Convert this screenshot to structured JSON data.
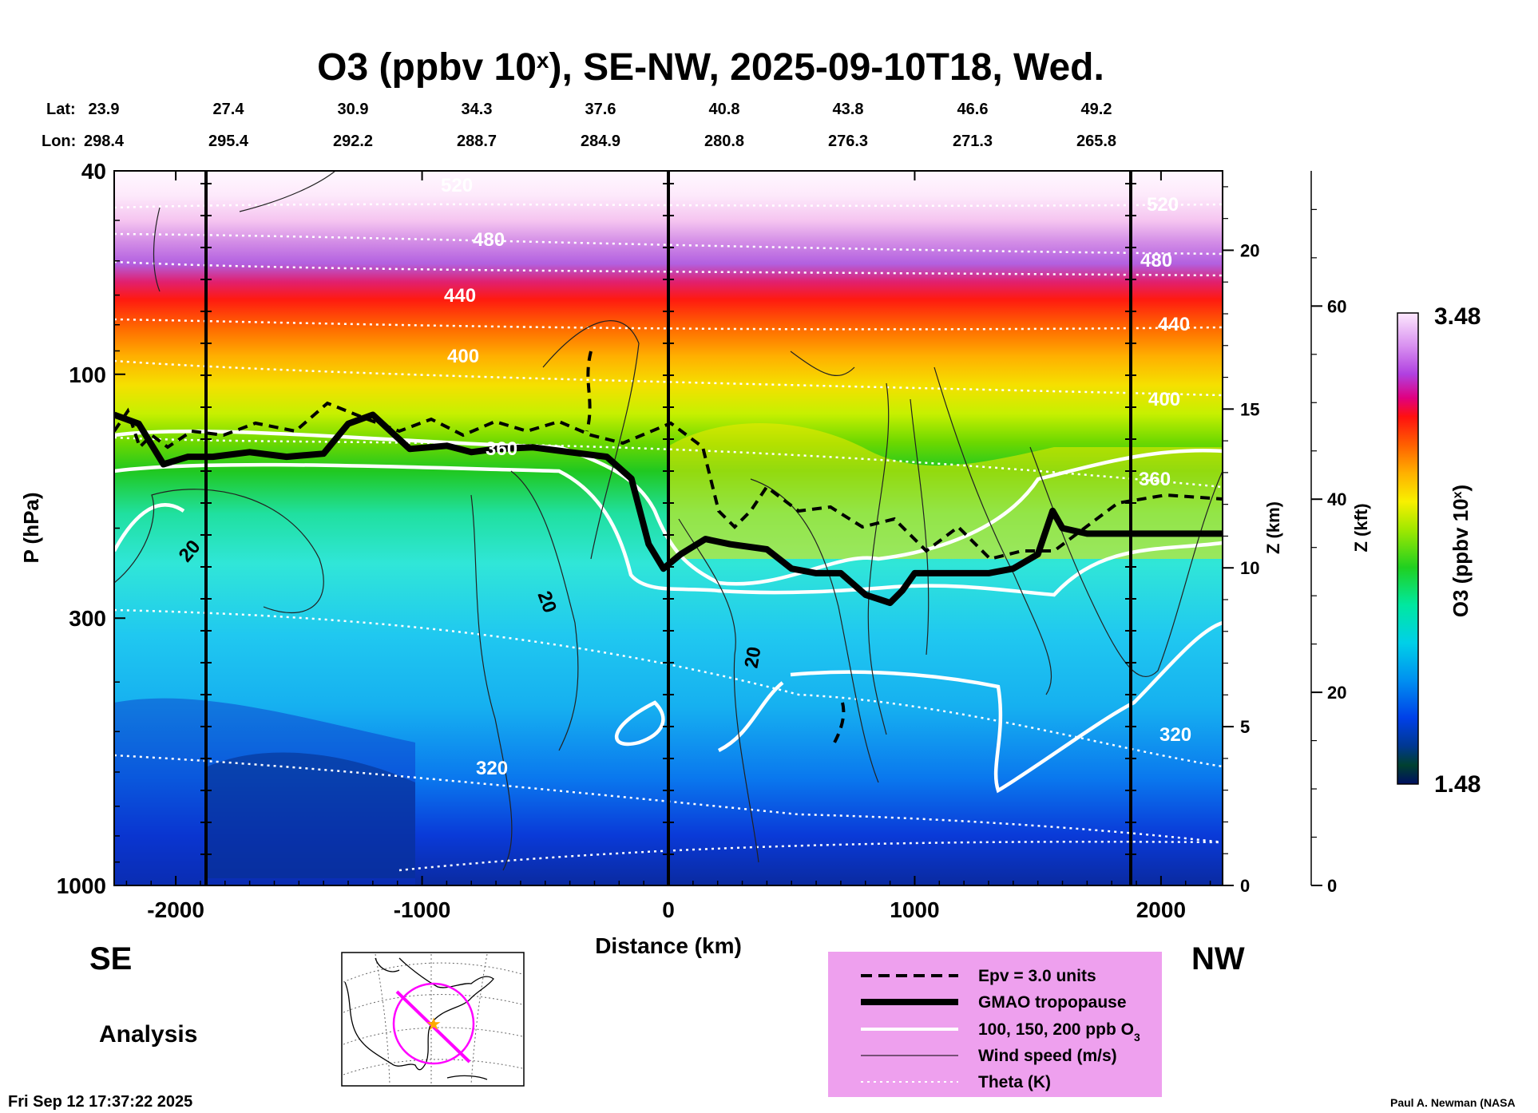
{
  "chart_data": {
    "type": "heatmap",
    "title": "O3 (ppbv 10",
    "title_sup": "x",
    "title_rest": "), SE-NW, 2025-09-10T18, Wed.",
    "xlabel": "Distance (km)",
    "ylabel": "P (hPa)",
    "y2label": "Z (km)",
    "y3label": "Z (kft)",
    "cbar_label": "O3 (ppbv 10",
    "cbar_sup": "x",
    "cbar_label_rest": ")",
    "xlim": [
      -2250,
      2250
    ],
    "ylim_hpa": [
      1000,
      40
    ],
    "x_ticks": [
      -2000,
      -1000,
      0,
      1000,
      2000
    ],
    "x_tick_labels": [
      "-2000",
      "-1000",
      "0",
      "1000",
      "2000"
    ],
    "y_ticks": [
      40,
      100,
      300,
      1000
    ],
    "y_tick_labels": [
      "40",
      "100",
      "300",
      "1000"
    ],
    "z_km_ticks": [
      0,
      5,
      10,
      15,
      20
    ],
    "z_km_labels": [
      "0",
      "5",
      "10",
      "15",
      "20"
    ],
    "z_kft_ticks": [
      0,
      20,
      40,
      60
    ],
    "z_kft_labels": [
      "0",
      "20",
      "40",
      "60"
    ],
    "cbar_min": "1.48",
    "cbar_max": "3.48",
    "lat_label": "Lat:",
    "lon_label": "Lon:",
    "lats": [
      "23.9",
      "27.4",
      "30.9",
      "34.3",
      "37.6",
      "40.8",
      "43.8",
      "46.6",
      "49.2"
    ],
    "lons": [
      "298.4",
      "295.4",
      "292.2",
      "288.7",
      "284.9",
      "280.8",
      "276.3",
      "271.3",
      "265.8"
    ],
    "tropopause": {
      "name": "GMAO tropopause",
      "x": [
        -2250,
        -2150,
        -2050,
        -1950,
        -1850,
        -1700,
        -1550,
        -1400,
        -1300,
        -1200,
        -1050,
        -900,
        -800,
        -700,
        -550,
        -400,
        -250,
        -150,
        -80,
        -20,
        50,
        150,
        250,
        400,
        500,
        600,
        700,
        800,
        900,
        950,
        1000,
        1100,
        1200,
        1300,
        1400,
        1500,
        1560,
        1600,
        1700,
        1800,
        2000,
        2250
      ],
      "p_hpa": [
        120,
        125,
        150,
        145,
        145,
        142,
        145,
        143,
        125,
        120,
        140,
        138,
        142,
        140,
        139,
        142,
        145,
        160,
        215,
        240,
        225,
        210,
        215,
        220,
        240,
        245,
        245,
        270,
        280,
        265,
        245,
        245,
        245,
        245,
        240,
        225,
        185,
        200,
        205,
        205,
        205,
        205
      ]
    },
    "contours": {
      "o3_ppb": [
        "100",
        "150",
        "200"
      ],
      "theta_k": [
        "320",
        "360",
        "400",
        "440",
        "480",
        "520"
      ],
      "wind_label": "20"
    },
    "legend": [
      {
        "label": "Epv = 3.0 units",
        "style": "dashed"
      },
      {
        "label": "GMAO tropopause",
        "style": "thick"
      },
      {
        "label": "100, 150, 200 ppb O",
        "sub": "3",
        "style": "white"
      },
      {
        "label": "Wind speed (m/s)",
        "style": "thin"
      },
      {
        "label": "Theta (K)",
        "style": "dotted"
      }
    ]
  },
  "direction_left": "SE",
  "direction_right": "NW",
  "mode": "Analysis",
  "timestamp": "Fri Sep 12 17:37:22 2025",
  "credit": "Paul A. Newman (NASA",
  "colors": {
    "legend_bg": "#eea0ee",
    "route_line": "#ff00ff",
    "star": "#ffaa00"
  }
}
